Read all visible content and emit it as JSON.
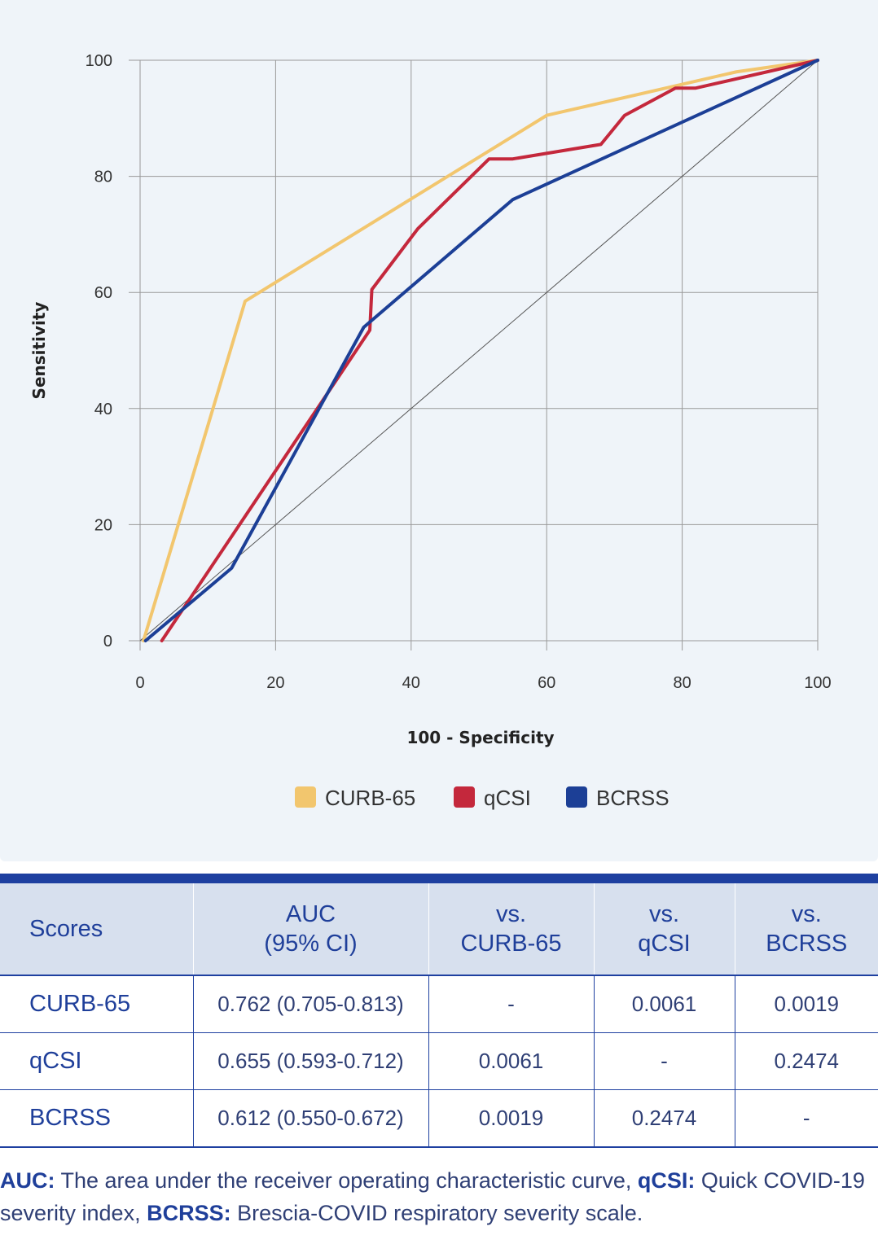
{
  "chart_data": {
    "type": "line",
    "xlabel": "100 - Specificity",
    "ylabel": "Sensitivity",
    "xlim": [
      0,
      100
    ],
    "ylim": [
      0,
      100
    ],
    "xticks": [
      "0",
      "20",
      "40",
      "60",
      "80",
      "100"
    ],
    "yticks": [
      "0",
      "20",
      "40",
      "60",
      "80",
      "100"
    ],
    "grid": true,
    "legend": "bottom",
    "reference_line": {
      "x": [
        0,
        100
      ],
      "y": [
        0,
        100
      ]
    },
    "series": [
      {
        "name": "CURB-65",
        "color": "#f2c66e",
        "x": [
          0.5,
          15.5,
          60,
          88,
          100
        ],
        "y": [
          0,
          58.5,
          90.5,
          98,
          100
        ]
      },
      {
        "name": "qCSI",
        "color": "#c4283c",
        "x": [
          3.2,
          33.9,
          34.2,
          41,
          51.5,
          55,
          68,
          71.5,
          79,
          82,
          100
        ],
        "y": [
          0,
          53.5,
          60.5,
          71,
          83,
          83,
          85.5,
          90.5,
          95.2,
          95.2,
          100
        ]
      },
      {
        "name": "BCRSS",
        "color": "#1c3f96",
        "x": [
          0.8,
          13.5,
          33,
          55,
          100
        ],
        "y": [
          0,
          12.5,
          54,
          76,
          100
        ]
      }
    ]
  },
  "table": {
    "headers": [
      {
        "line1": "Scores",
        "line2": ""
      },
      {
        "line1": "AUC",
        "line2": "(95% CI)"
      },
      {
        "line1": "vs.",
        "line2": "CURB-65"
      },
      {
        "line1": "vs.",
        "line2": "qCSI"
      },
      {
        "line1": "vs.",
        "line2": "BCRSS"
      }
    ],
    "rows": [
      [
        "CURB-65",
        "0.762 (0.705-0.813)",
        "-",
        "0.0061",
        "0.0019"
      ],
      [
        "qCSI",
        "0.655 (0.593-0.712)",
        "0.0061",
        "-",
        "0.2474"
      ],
      [
        "BCRSS",
        "0.612 (0.550-0.672)",
        "0.0019",
        "0.2474",
        "-"
      ]
    ]
  },
  "footnote": {
    "auc_term": "AUC:",
    "auc_def": " The area under the receiver operating characteristic curve, ",
    "qcsi_term": "qCSI:",
    "qcsi_def": " Quick COVID-19 severity index, ",
    "bcrss_term": "BCRSS:",
    "bcrss_def": " Brescia-COVID respiratory severity scale."
  }
}
